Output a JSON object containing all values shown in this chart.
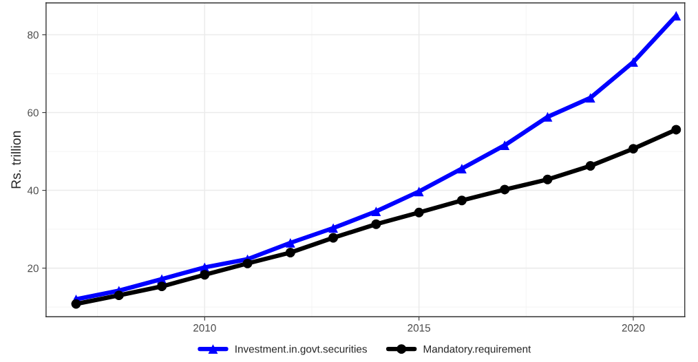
{
  "chart_data": {
    "type": "line",
    "ylabel": "Rs. trillion",
    "x": [
      2007,
      2008,
      2009,
      2010,
      2011,
      2012,
      2013,
      2014,
      2015,
      2016,
      2017,
      2018,
      2019,
      2020,
      2021
    ],
    "series": [
      {
        "name": "Investment.in.govt.securities",
        "color": "#0000ff",
        "marker": "triangle",
        "values": [
          12.0,
          14.2,
          17.2,
          20.2,
          22.3,
          26.5,
          30.3,
          34.6,
          39.7,
          45.6,
          51.6,
          58.9,
          63.8,
          73.0,
          84.9
        ]
      },
      {
        "name": "Mandatory.requirement",
        "color": "#000000",
        "marker": "circle",
        "values": [
          10.8,
          13.0,
          15.3,
          18.3,
          21.2,
          24.0,
          27.8,
          31.3,
          34.3,
          37.4,
          40.2,
          42.8,
          46.3,
          50.7,
          55.6
        ]
      }
    ],
    "xlim": [
      2006.3,
      2021.2
    ],
    "ylim": [
      7.5,
      88.2
    ],
    "xticks": [
      2010,
      2015,
      2020
    ],
    "yticks": [
      20,
      40,
      60,
      80
    ],
    "grid": true,
    "legend": "bottom",
    "line_style": "solid"
  }
}
